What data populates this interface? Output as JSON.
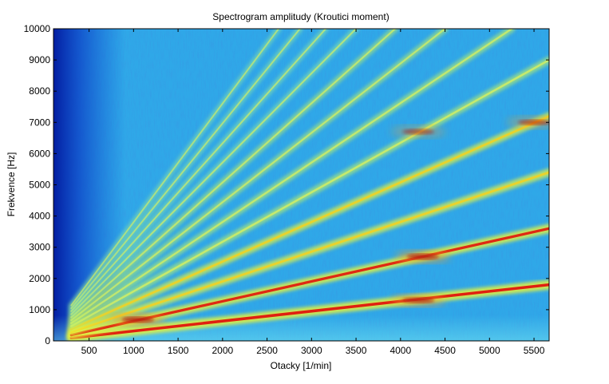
{
  "chart_data": {
    "type": "heatmap",
    "title": "Spectrogram amplitudy (Kroutici moment)",
    "xlabel": "Otacky [1/min]",
    "ylabel": "Frekvence [Hz]",
    "xlim": [
      100,
      5670
    ],
    "ylim": [
      0,
      10000
    ],
    "xticks": [
      500,
      1000,
      1500,
      2000,
      2500,
      3000,
      3500,
      4000,
      4500,
      5000,
      5500
    ],
    "xtick_labels": [
      "500",
      "1000",
      "1500",
      "2000",
      "2500",
      "3000",
      "3500",
      "4000",
      "4500",
      "5000",
      "5500"
    ],
    "yticks": [
      0,
      1000,
      2000,
      3000,
      4000,
      5000,
      6000,
      7000,
      8000,
      9000,
      10000
    ],
    "ytick_labels": [
      "0",
      "1000",
      "2000",
      "3000",
      "4000",
      "5000",
      "6000",
      "7000",
      "8000",
      "9000",
      "10000"
    ],
    "colormap": "jet",
    "background_color": "#2fa8e8",
    "grid": false,
    "legend": "none",
    "series": [
      {
        "order": 19,
        "points": [
          [
            300,
            95
          ],
          [
            5670,
            1800
          ]
        ],
        "intensity": 1.0
      },
      {
        "order": 38,
        "points": [
          [
            300,
            190
          ],
          [
            5670,
            3600
          ]
        ],
        "intensity": 0.9
      },
      {
        "order": 57,
        "points": [
          [
            300,
            285
          ],
          [
            5670,
            5400
          ]
        ],
        "intensity": 0.65
      },
      {
        "order": 76,
        "points": [
          [
            300,
            380
          ],
          [
            5670,
            7200
          ]
        ],
        "intensity": 0.62
      },
      {
        "order": 95,
        "points": [
          [
            300,
            475
          ],
          [
            5670,
            9000
          ]
        ],
        "intensity": 0.5
      },
      {
        "order": 114,
        "points": [
          [
            300,
            570
          ],
          [
            5250,
            10000
          ]
        ],
        "intensity": 0.42
      },
      {
        "order": 133,
        "points": [
          [
            300,
            665
          ],
          [
            4500,
            10000
          ]
        ],
        "intensity": 0.36
      },
      {
        "order": 152,
        "points": [
          [
            300,
            760
          ],
          [
            3940,
            10000
          ]
        ],
        "intensity": 0.32
      },
      {
        "order": 171,
        "points": [
          [
            300,
            855
          ],
          [
            3500,
            10000
          ]
        ],
        "intensity": 0.28
      },
      {
        "order": 190,
        "points": [
          [
            300,
            950
          ],
          [
            3160,
            10000
          ]
        ],
        "intensity": 0.25
      },
      {
        "order": 209,
        "points": [
          [
            300,
            1045
          ],
          [
            2870,
            10000
          ]
        ],
        "intensity": 0.22
      },
      {
        "order": 228,
        "points": [
          [
            300,
            1140
          ],
          [
            2630,
            10000
          ]
        ],
        "intensity": 0.2
      }
    ],
    "hotspots": [
      {
        "x": 4250,
        "y": 2700,
        "intensity": 1.0
      },
      {
        "x": 4200,
        "y": 1300,
        "intensity": 0.9
      },
      {
        "x": 1050,
        "y": 680,
        "intensity": 1.0
      },
      {
        "x": 4200,
        "y": 6700,
        "intensity": 0.6
      },
      {
        "x": 5500,
        "y": 7000,
        "intensity": 0.65
      }
    ]
  }
}
